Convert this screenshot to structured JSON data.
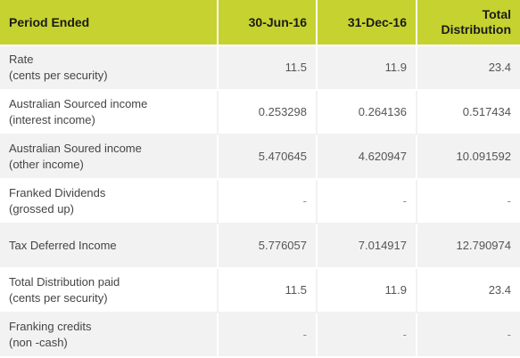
{
  "header": {
    "period_label": "Period Ended",
    "col1": "30-Jun-16",
    "col2": "31-Dec-16",
    "col3_line1": "Total",
    "col3_line2": "Distribution"
  },
  "rows": [
    {
      "label_line1": "Rate",
      "label_line2": "(cents per security)",
      "v1": "11.5",
      "v2": "11.9",
      "v3": "23.4"
    },
    {
      "label_line1": "Australian Sourced income",
      "label_line2": "(interest income)",
      "v1": "0.253298",
      "v2": "0.264136",
      "v3": "0.517434"
    },
    {
      "label_line1": "Australian Soured income",
      "label_line2": "(other income)",
      "v1": "5.470645",
      "v2": "4.620947",
      "v3": "10.091592"
    },
    {
      "label_line1": "Franked Dividends",
      "label_line2": "(grossed up)",
      "v1": "-",
      "v2": "-",
      "v3": "-"
    },
    {
      "label_line1": "Tax Deferred Income",
      "label_line2": "",
      "v1": "5.776057",
      "v2": "7.014917",
      "v3": "12.790974"
    },
    {
      "label_line1": "Total Distribution paid",
      "label_line2": "(cents per security)",
      "v1": "11.5",
      "v2": "11.9",
      "v3": "23.4"
    },
    {
      "label_line1": "Franking credits",
      "label_line2": "(non -cash)",
      "v1": "-",
      "v2": "-",
      "v3": "-"
    }
  ],
  "colors": {
    "header_bg": "#c6d22f",
    "stripe_bg": "#f2f2f2"
  }
}
